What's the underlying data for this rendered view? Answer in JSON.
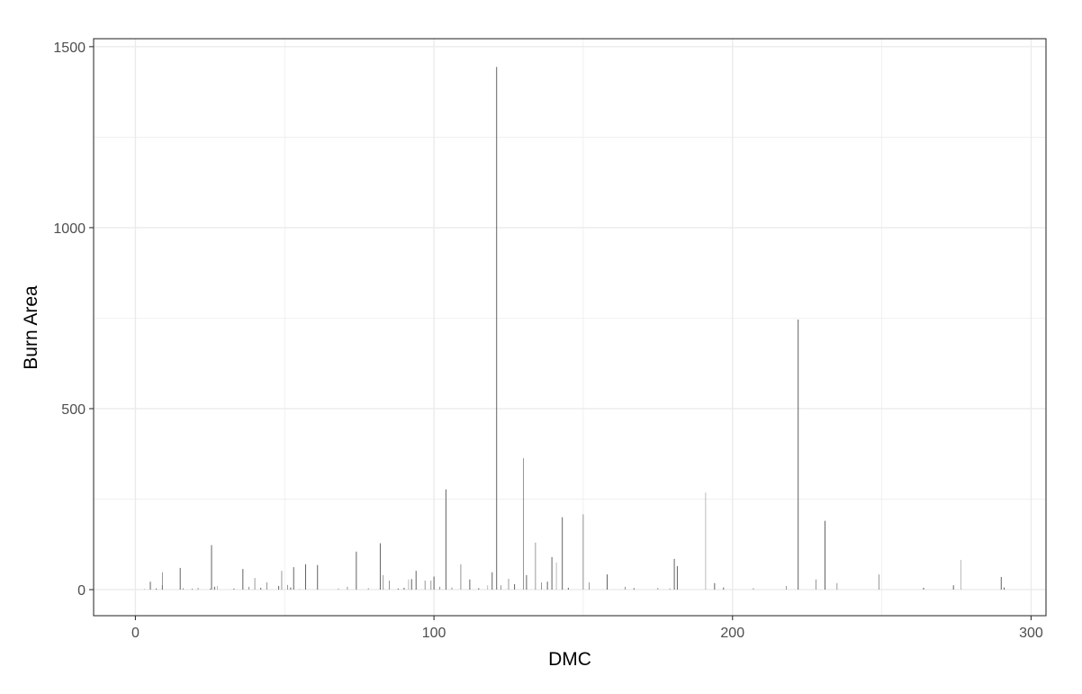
{
  "chart_data": {
    "type": "bar",
    "title": "",
    "xlabel": "DMC",
    "ylabel": "Burn Area",
    "xlim": [
      -14,
      305
    ],
    "ylim": [
      -72,
      1522
    ],
    "x_ticks": [
      0,
      100,
      200,
      300
    ],
    "y_ticks": [
      0,
      500,
      1000,
      1500
    ],
    "x_tick_labels": [
      "0",
      "100",
      "200",
      "300"
    ],
    "y_tick_labels": [
      "0",
      "500",
      "1000",
      "1500"
    ],
    "grid": true,
    "legend": "none",
    "colors": {
      "bar_stroke": "#333333",
      "grid": "#ebebeb",
      "panel_border": "#333333"
    },
    "bars": [
      {
        "x": 3,
        "y": 2
      },
      {
        "x": 5,
        "y": 22
      },
      {
        "x": 7,
        "y": 3
      },
      {
        "x": 9,
        "y": 48
      },
      {
        "x": 9,
        "y": 12
      },
      {
        "x": 15,
        "y": 60
      },
      {
        "x": 16,
        "y": 4
      },
      {
        "x": 19,
        "y": 2
      },
      {
        "x": 21,
        "y": 5
      },
      {
        "x": 25,
        "y": 3
      },
      {
        "x": 25.5,
        "y": 123
      },
      {
        "x": 26.5,
        "y": 8
      },
      {
        "x": 27.5,
        "y": 10
      },
      {
        "x": 33,
        "y": 3
      },
      {
        "x": 36,
        "y": 57
      },
      {
        "x": 38,
        "y": 8
      },
      {
        "x": 40,
        "y": 32
      },
      {
        "x": 42,
        "y": 5
      },
      {
        "x": 44,
        "y": 20
      },
      {
        "x": 48,
        "y": 10
      },
      {
        "x": 49,
        "y": 52
      },
      {
        "x": 51,
        "y": 13
      },
      {
        "x": 52,
        "y": 6
      },
      {
        "x": 53,
        "y": 62
      },
      {
        "x": 55,
        "y": 2
      },
      {
        "x": 57,
        "y": 70
      },
      {
        "x": 61,
        "y": 68
      },
      {
        "x": 68,
        "y": 3
      },
      {
        "x": 71,
        "y": 8
      },
      {
        "x": 74,
        "y": 105
      },
      {
        "x": 78,
        "y": 4
      },
      {
        "x": 82,
        "y": 128
      },
      {
        "x": 83,
        "y": 40
      },
      {
        "x": 85,
        "y": 25
      },
      {
        "x": 88,
        "y": 3
      },
      {
        "x": 90,
        "y": 5
      },
      {
        "x": 91.5,
        "y": 28
      },
      {
        "x": 92.5,
        "y": 29
      },
      {
        "x": 94,
        "y": 52
      },
      {
        "x": 97,
        "y": 25
      },
      {
        "x": 99,
        "y": 25
      },
      {
        "x": 100,
        "y": 36
      },
      {
        "x": 102,
        "y": 8
      },
      {
        "x": 104,
        "y": 277
      },
      {
        "x": 106,
        "y": 6
      },
      {
        "x": 109,
        "y": 70
      },
      {
        "x": 112,
        "y": 28
      },
      {
        "x": 115,
        "y": 4
      },
      {
        "x": 118,
        "y": 12
      },
      {
        "x": 119.5,
        "y": 48
      },
      {
        "x": 121,
        "y": 1444
      },
      {
        "x": 122.5,
        "y": 12
      },
      {
        "x": 125,
        "y": 30
      },
      {
        "x": 127,
        "y": 15
      },
      {
        "x": 130,
        "y": 363
      },
      {
        "x": 131,
        "y": 40
      },
      {
        "x": 134,
        "y": 130
      },
      {
        "x": 136,
        "y": 20
      },
      {
        "x": 138,
        "y": 22
      },
      {
        "x": 139.5,
        "y": 90
      },
      {
        "x": 141,
        "y": 75
      },
      {
        "x": 143,
        "y": 200
      },
      {
        "x": 145,
        "y": 5
      },
      {
        "x": 150,
        "y": 208
      },
      {
        "x": 152,
        "y": 20
      },
      {
        "x": 158,
        "y": 42
      },
      {
        "x": 164,
        "y": 8
      },
      {
        "x": 167,
        "y": 4
      },
      {
        "x": 175,
        "y": 5
      },
      {
        "x": 179,
        "y": 3
      },
      {
        "x": 180.5,
        "y": 85
      },
      {
        "x": 181.5,
        "y": 65
      },
      {
        "x": 191,
        "y": 268
      },
      {
        "x": 194,
        "y": 18
      },
      {
        "x": 197,
        "y": 6
      },
      {
        "x": 207,
        "y": 4
      },
      {
        "x": 218,
        "y": 10
      },
      {
        "x": 222,
        "y": 746
      },
      {
        "x": 228,
        "y": 28
      },
      {
        "x": 231,
        "y": 190
      },
      {
        "x": 235,
        "y": 18
      },
      {
        "x": 249,
        "y": 42
      },
      {
        "x": 264,
        "y": 5
      },
      {
        "x": 274,
        "y": 12
      },
      {
        "x": 276.5,
        "y": 82
      },
      {
        "x": 290,
        "y": 35
      },
      {
        "x": 291,
        "y": 6
      }
    ]
  }
}
